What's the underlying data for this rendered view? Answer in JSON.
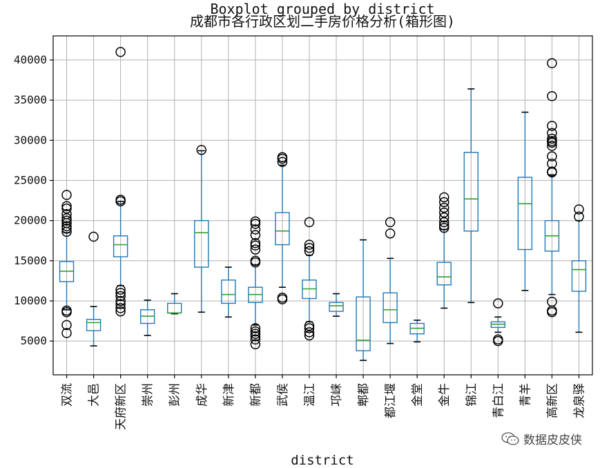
{
  "chart_data": {
    "type": "boxplot",
    "suptitle": "Boxplot grouped by district",
    "title": "成都市各行政区划二手房价格分析(箱形图)",
    "xlabel": "district",
    "ylabel": "",
    "ylim": [
      800,
      43000
    ],
    "yticks": [
      5000,
      10000,
      15000,
      20000,
      25000,
      30000,
      35000,
      40000
    ],
    "grid": true,
    "colors": {
      "box": "#1f77b4",
      "median": "#2ca02c",
      "whisker": "#1f77b4",
      "cap": "#000000",
      "flier": "#000000",
      "grid": "#b0b0b0",
      "axis": "#000000"
    },
    "categories": [
      "双流",
      "大邑",
      "天府新区",
      "崇州",
      "彭州",
      "成华",
      "新津",
      "新都",
      "武侯",
      "温江",
      "邛崃",
      "郫都",
      "都江堰",
      "金堂",
      "金牛",
      "锦江",
      "青白江",
      "青羊",
      "高新区",
      "龙泉驿"
    ],
    "boxes": [
      {
        "whisker_low": 8900,
        "q1": 12400,
        "median": 13700,
        "q3": 14900,
        "whisker_high": 18500,
        "fliers": [
          6000,
          7000,
          8600,
          8800,
          18600,
          19000,
          19300,
          19700,
          20000,
          20300,
          20800,
          21500,
          21800,
          23200
        ]
      },
      {
        "whisker_low": 4400,
        "q1": 6300,
        "median": 7300,
        "q3": 7700,
        "whisker_high": 9300,
        "fliers": [
          18000
        ]
      },
      {
        "whisker_low": 11900,
        "q1": 15500,
        "median": 17000,
        "q3": 18100,
        "whisker_high": 22400,
        "fliers": [
          8700,
          9100,
          9600,
          10000,
          10600,
          11000,
          11400,
          22400,
          22600,
          41000
        ]
      },
      {
        "whisker_low": 5700,
        "q1": 7200,
        "median": 8100,
        "q3": 8900,
        "whisker_high": 10100,
        "fliers": []
      },
      {
        "whisker_low": 8400,
        "q1": 8500,
        "median": 8500,
        "q3": 9700,
        "whisker_high": 10900,
        "fliers": []
      },
      {
        "whisker_low": 8600,
        "q1": 14200,
        "median": 18500,
        "q3": 20000,
        "whisker_high": 28700,
        "fliers": [
          28800
        ]
      },
      {
        "whisker_low": 8000,
        "q1": 9700,
        "median": 10800,
        "q3": 12600,
        "whisker_high": 14200,
        "fliers": []
      },
      {
        "whisker_low": 7000,
        "q1": 9800,
        "median": 10800,
        "q3": 11700,
        "whisker_high": 14500,
        "fliers": [
          4600,
          5200,
          5600,
          5900,
          6200,
          6600,
          14800,
          15000,
          16400,
          16900,
          17200,
          18200,
          18900,
          19600,
          19900
        ]
      },
      {
        "whisker_low": 11700,
        "q1": 17000,
        "median": 18700,
        "q3": 21000,
        "whisker_high": 26900,
        "fliers": [
          10200,
          10400,
          27300,
          27700,
          27900
        ]
      },
      {
        "whisker_low": 7400,
        "q1": 10300,
        "median": 11500,
        "q3": 12600,
        "whisker_high": 15700,
        "fliers": [
          5700,
          6100,
          6600,
          6900,
          16200,
          16600,
          17000,
          19800
        ]
      },
      {
        "whisker_low": 8100,
        "q1": 8700,
        "median": 9400,
        "q3": 9800,
        "whisker_high": 10900,
        "fliers": []
      },
      {
        "whisker_low": 2600,
        "q1": 3800,
        "median": 5100,
        "q3": 10500,
        "whisker_high": 17600,
        "fliers": []
      },
      {
        "whisker_low": 4700,
        "q1": 7300,
        "median": 8900,
        "q3": 11000,
        "whisker_high": 15300,
        "fliers": [
          18400,
          19800
        ]
      },
      {
        "whisker_low": 4900,
        "q1": 5900,
        "median": 6600,
        "q3": 7200,
        "whisker_high": 7600,
        "fliers": []
      },
      {
        "whisker_low": 9100,
        "q1": 12000,
        "median": 13000,
        "q3": 14800,
        "whisker_high": 18900,
        "fliers": [
          19100,
          19400,
          19800,
          20400,
          21000,
          21600,
          22300,
          22900
        ]
      },
      {
        "whisker_low": 9800,
        "q1": 18700,
        "median": 22700,
        "q3": 28500,
        "whisker_high": 36400,
        "fliers": []
      },
      {
        "whisker_low": 6100,
        "q1": 6700,
        "median": 7100,
        "q3": 7400,
        "whisker_high": 8000,
        "fliers": [
          5000,
          5200,
          9700
        ]
      },
      {
        "whisker_low": 11300,
        "q1": 16400,
        "median": 22100,
        "q3": 25400,
        "whisker_high": 33500,
        "fliers": []
      },
      {
        "whisker_low": 10800,
        "q1": 16200,
        "median": 18100,
        "q3": 20000,
        "whisker_high": 25700,
        "fliers": [
          8600,
          8800,
          9900,
          26000,
          26100,
          27100,
          28000,
          29300,
          29700,
          29900,
          30200,
          30900,
          31800,
          35500,
          39600
        ]
      },
      {
        "whisker_low": 6100,
        "q1": 11200,
        "median": 13900,
        "q3": 15000,
        "whisker_high": 20000,
        "fliers": [
          20500,
          21400
        ]
      }
    ]
  },
  "watermark": {
    "text": "数据皮皮侠",
    "icon": "wechat-icon"
  }
}
